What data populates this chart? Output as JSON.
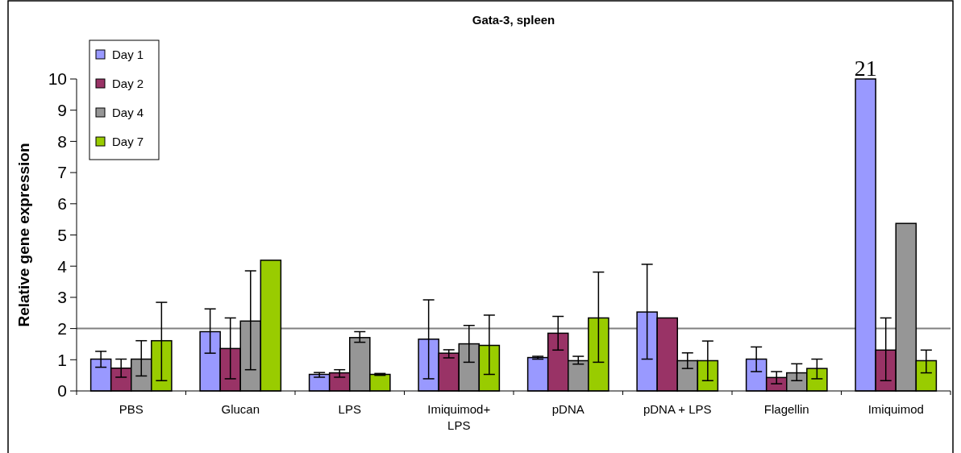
{
  "chart_data": {
    "type": "bar",
    "title": "Gata-3, spleen",
    "ylabel": "Relative gene expression",
    "categories": [
      "PBS",
      "Glucan",
      "LPS",
      "Imiquimod+ LPS",
      "pDNA",
      "pDNA + LPS",
      "Flagellin",
      "Imiquimod"
    ],
    "series": [
      {
        "name": "Day 1",
        "color": "#9999ff",
        "values": [
          1.02,
          1.9,
          0.53,
          1.66,
          1.07,
          2.53,
          1.02,
          10
        ],
        "errors": [
          [
            0.76,
            1.27
          ],
          [
            1.21,
            2.63
          ],
          [
            0.44,
            0.59
          ],
          [
            0.39,
            2.92
          ],
          [
            1.02,
            1.11
          ],
          [
            1.02,
            4.06
          ],
          [
            0.62,
            1.41
          ],
          null
        ]
      },
      {
        "name": "Day 2",
        "color": "#993366",
        "values": [
          0.73,
          1.36,
          0.58,
          1.21,
          1.85,
          2.34,
          0.43,
          1.31
        ],
        "errors": [
          [
            0.44,
            1.02
          ],
          [
            0.39,
            2.34
          ],
          [
            0.44,
            0.68
          ],
          [
            1.06,
            1.32
          ],
          [
            1.31,
            2.39
          ],
          null,
          [
            0.23,
            0.62
          ],
          [
            0.33,
            2.34
          ]
        ]
      },
      {
        "name": "Day 4",
        "color": "#969696",
        "values": [
          1.02,
          2.24,
          1.71,
          1.51,
          0.97,
          0.97,
          0.58,
          5.37
        ],
        "errors": [
          [
            0.48,
            1.61
          ],
          [
            0.68,
            3.85
          ],
          [
            1.56,
            1.9
          ],
          [
            0.92,
            2.1
          ],
          [
            0.86,
            1.11
          ],
          [
            0.72,
            1.22
          ],
          [
            0.33,
            0.87
          ],
          null
        ]
      },
      {
        "name": "Day 7",
        "color": "#99cc00",
        "values": [
          1.61,
          4.19,
          0.53,
          1.46,
          2.34,
          0.97,
          0.72,
          0.97
        ],
        "errors": [
          [
            0.33,
            2.84
          ],
          null,
          [
            0.5,
            0.56
          ],
          [
            0.53,
            2.43
          ],
          [
            0.92,
            3.81
          ],
          [
            0.33,
            1.6
          ],
          [
            0.39,
            1.02
          ],
          [
            0.58,
            1.31
          ]
        ]
      }
    ],
    "ylim": [
      0,
      10
    ],
    "yticks": [
      0,
      1,
      2,
      3,
      4,
      5,
      6,
      7,
      8,
      9,
      10
    ],
    "ref_lines": [
      {
        "axis": "y",
        "value": 2,
        "color": "#808080"
      }
    ],
    "annotations": [
      "21"
    ],
    "legend": "top left",
    "grid": false
  }
}
